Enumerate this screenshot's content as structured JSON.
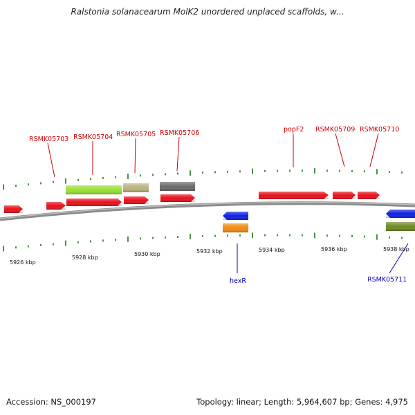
{
  "title": "Ralstonia solanacearum MolK2 unordered unplaced scaffolds, w...",
  "footer": {
    "accession": "Accession: NS_000197",
    "summary": "Topology: linear; Length: 5,964,607 bp; Genes: 4,975"
  },
  "colors": {
    "backbone": "#888888",
    "tick": "#1a7a1a",
    "label_forward": "#cc0000",
    "label_reverse": "#0000bb",
    "feature_red": "#e8101a",
    "feature_lightgreen": "#99e033",
    "feature_khaki": "#b8b47a",
    "feature_gray": "#6a6a6a",
    "feature_blue": "#1020e0",
    "feature_orange": "#f28a10",
    "feature_olive": "#6e8a22"
  },
  "scale_labels": [
    "5926 kbp",
    "5928 kbp",
    "5930 kbp",
    "5932 kbp",
    "5934 kbp",
    "5936 kbp",
    "5938 kbp"
  ],
  "labeled_genes": [
    {
      "name": "RSMK05703",
      "strand": "forward"
    },
    {
      "name": "RSMK05704",
      "strand": "forward"
    },
    {
      "name": "RSMK05705",
      "strand": "forward"
    },
    {
      "name": "RSMK05706",
      "strand": "forward"
    },
    {
      "name": "popF2",
      "strand": "forward"
    },
    {
      "name": "RSMK05709",
      "strand": "forward"
    },
    {
      "name": "RSMK05710",
      "strand": "forward"
    },
    {
      "name": "hexR",
      "strand": "reverse"
    },
    {
      "name": "RSMK05711",
      "strand": "reverse"
    }
  ]
}
